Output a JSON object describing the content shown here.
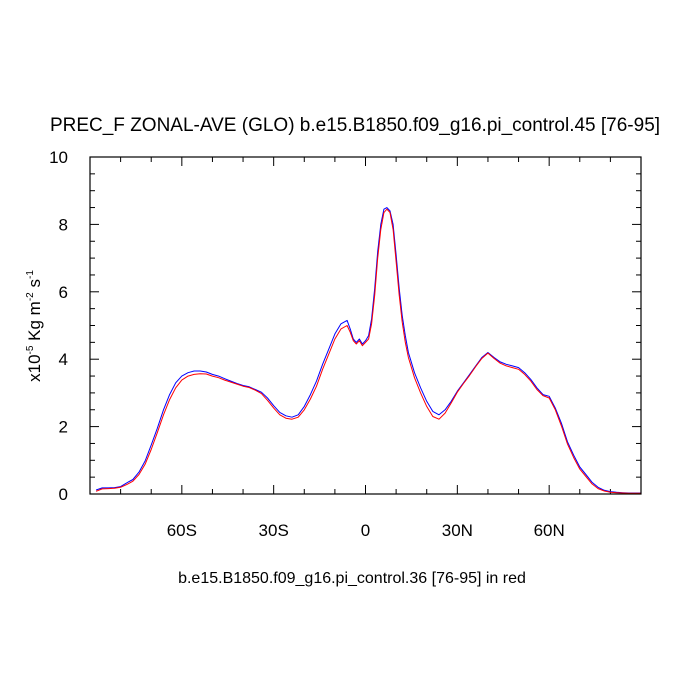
{
  "chart_data": {
    "type": "line",
    "title": "PREC_F ZONAL-AVE (GLO) b.e15.B1850.f09_g16.pi_control.45 [76-95]",
    "xlabel": "b.e15.B1850.f09_g16.pi_control.36 [76-95] in red",
    "ylabel": {
      "prefix": "x10",
      "exp1": "-5",
      "mid": " Kg m",
      "exp2": "-2",
      "mid2": " s",
      "exp3": "-1"
    },
    "xlim": [
      -90,
      90
    ],
    "ylim": [
      0,
      10
    ],
    "xticks": [
      {
        "value": -60,
        "label": "60S"
      },
      {
        "value": -30,
        "label": "30S"
      },
      {
        "value": 0,
        "label": "0"
      },
      {
        "value": 30,
        "label": "30N"
      },
      {
        "value": 60,
        "label": "60N"
      }
    ],
    "yticks": [
      0,
      2,
      4,
      6,
      8,
      10
    ],
    "series": [
      {
        "color": "#0000ff",
        "x": [
          -88,
          -86,
          -84,
          -82,
          -80,
          -78,
          -76,
          -74,
          -72,
          -70,
          -68,
          -66,
          -64,
          -62,
          -60,
          -58,
          -56,
          -54,
          -52,
          -50,
          -48,
          -46,
          -44,
          -42,
          -40,
          -38,
          -36,
          -34,
          -32,
          -30,
          -28,
          -26,
          -24,
          -22,
          -20,
          -18,
          -16,
          -14,
          -12,
          -10,
          -8,
          -6,
          -5,
          -4,
          -3,
          -2,
          -1,
          0,
          1,
          2,
          3,
          4,
          5,
          6,
          7,
          8,
          9,
          10,
          11,
          12,
          13,
          14,
          16,
          18,
          20,
          22,
          24,
          26,
          28,
          30,
          32,
          34,
          36,
          38,
          40,
          42,
          44,
          46,
          48,
          50,
          52,
          54,
          56,
          58,
          60,
          62,
          64,
          66,
          68,
          70,
          72,
          74,
          76,
          78,
          80,
          82,
          84,
          86,
          88,
          90
        ],
        "y": [
          0.12,
          0.18,
          0.18,
          0.19,
          0.22,
          0.33,
          0.43,
          0.65,
          0.98,
          1.45,
          1.95,
          2.5,
          2.95,
          3.3,
          3.5,
          3.6,
          3.65,
          3.65,
          3.62,
          3.55,
          3.5,
          3.42,
          3.35,
          3.28,
          3.22,
          3.18,
          3.1,
          3.02,
          2.85,
          2.62,
          2.42,
          2.32,
          2.28,
          2.35,
          2.6,
          2.95,
          3.35,
          3.85,
          4.3,
          4.75,
          5.05,
          5.15,
          4.9,
          4.6,
          4.5,
          4.6,
          4.45,
          4.55,
          4.7,
          5.2,
          6.1,
          7.2,
          8.0,
          8.45,
          8.5,
          8.4,
          8.0,
          7.1,
          6.1,
          5.3,
          4.7,
          4.2,
          3.6,
          3.15,
          2.75,
          2.45,
          2.35,
          2.5,
          2.75,
          3.05,
          3.3,
          3.55,
          3.8,
          4.05,
          4.2,
          4.05,
          3.92,
          3.85,
          3.8,
          3.75,
          3.6,
          3.4,
          3.15,
          2.95,
          2.9,
          2.55,
          2.1,
          1.55,
          1.15,
          0.8,
          0.58,
          0.35,
          0.2,
          0.11,
          0.07,
          0.05,
          0.04,
          0.03,
          0.03,
          0.03
        ]
      },
      {
        "color": "#ff0000",
        "x": [
          -88,
          -86,
          -84,
          -82,
          -80,
          -78,
          -76,
          -74,
          -72,
          -70,
          -68,
          -66,
          -64,
          -62,
          -60,
          -58,
          -56,
          -54,
          -52,
          -50,
          -48,
          -46,
          -44,
          -42,
          -40,
          -38,
          -36,
          -34,
          -32,
          -30,
          -28,
          -26,
          -24,
          -22,
          -20,
          -18,
          -16,
          -14,
          -12,
          -10,
          -8,
          -6,
          -5,
          -4,
          -3,
          -2,
          -1,
          0,
          1,
          2,
          3,
          4,
          5,
          6,
          7,
          8,
          9,
          10,
          11,
          12,
          13,
          14,
          16,
          18,
          20,
          22,
          24,
          26,
          28,
          30,
          32,
          34,
          36,
          38,
          40,
          42,
          44,
          46,
          48,
          50,
          52,
          54,
          56,
          58,
          60,
          62,
          64,
          66,
          68,
          70,
          72,
          74,
          76,
          78,
          80,
          82,
          84,
          86,
          88,
          90
        ],
        "y": [
          0.08,
          0.15,
          0.16,
          0.17,
          0.2,
          0.28,
          0.38,
          0.58,
          0.88,
          1.32,
          1.82,
          2.35,
          2.8,
          3.15,
          3.38,
          3.5,
          3.55,
          3.57,
          3.56,
          3.5,
          3.45,
          3.38,
          3.32,
          3.26,
          3.2,
          3.16,
          3.08,
          2.98,
          2.78,
          2.55,
          2.35,
          2.25,
          2.22,
          2.28,
          2.5,
          2.82,
          3.2,
          3.7,
          4.15,
          4.6,
          4.9,
          5.0,
          4.8,
          4.55,
          4.45,
          4.55,
          4.4,
          4.5,
          4.6,
          5.05,
          5.9,
          7.0,
          7.85,
          8.35,
          8.45,
          8.35,
          7.85,
          6.9,
          5.9,
          5.1,
          4.5,
          4.05,
          3.45,
          3.0,
          2.6,
          2.3,
          2.22,
          2.4,
          2.7,
          3.02,
          3.28,
          3.52,
          3.78,
          4.02,
          4.18,
          4.02,
          3.88,
          3.8,
          3.75,
          3.7,
          3.55,
          3.35,
          3.1,
          2.92,
          2.85,
          2.5,
          2.02,
          1.48,
          1.08,
          0.74,
          0.52,
          0.3,
          0.16,
          0.09,
          0.05,
          0.04,
          0.03,
          0.02,
          0.02,
          0.02
        ]
      }
    ]
  }
}
